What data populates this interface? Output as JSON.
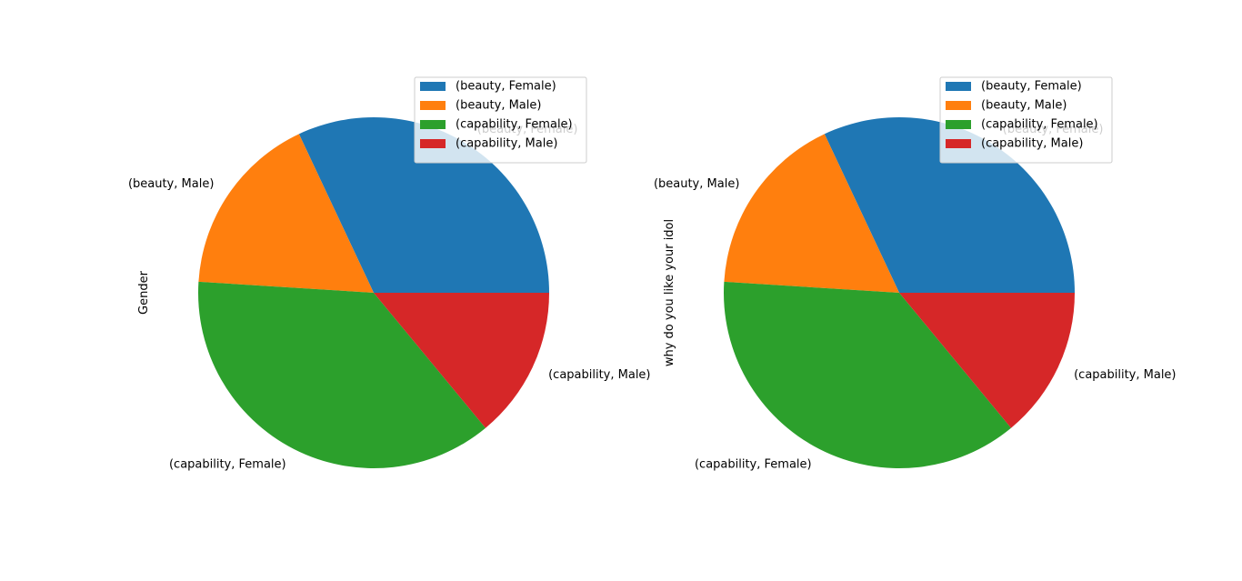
{
  "chart_data": [
    {
      "type": "pie",
      "ylabel": "Gender",
      "categories": [
        "(beauty, Female)",
        "(beauty, Male)",
        "(capability, Female)",
        "(capability, Male)"
      ],
      "values": [
        32,
        17,
        37,
        14
      ],
      "colors": [
        "#1f77b4",
        "#ff7f0e",
        "#2ca02c",
        "#d62728"
      ],
      "legend": {
        "placement": "upper-right",
        "entries": [
          "(beauty, Female)",
          "(beauty, Male)",
          "(capability, Female)",
          "(capability, Male)"
        ]
      }
    },
    {
      "type": "pie",
      "ylabel": "why do you like your idol",
      "categories": [
        "(beauty, Female)",
        "(beauty, Male)",
        "(capability, Female)",
        "(capability, Male)"
      ],
      "values": [
        32,
        17,
        37,
        14
      ],
      "colors": [
        "#1f77b4",
        "#ff7f0e",
        "#2ca02c",
        "#d62728"
      ],
      "legend": {
        "placement": "upper-right",
        "entries": [
          "(beauty, Female)",
          "(beauty, Male)",
          "(capability, Female)",
          "(capability, Male)"
        ]
      }
    }
  ]
}
